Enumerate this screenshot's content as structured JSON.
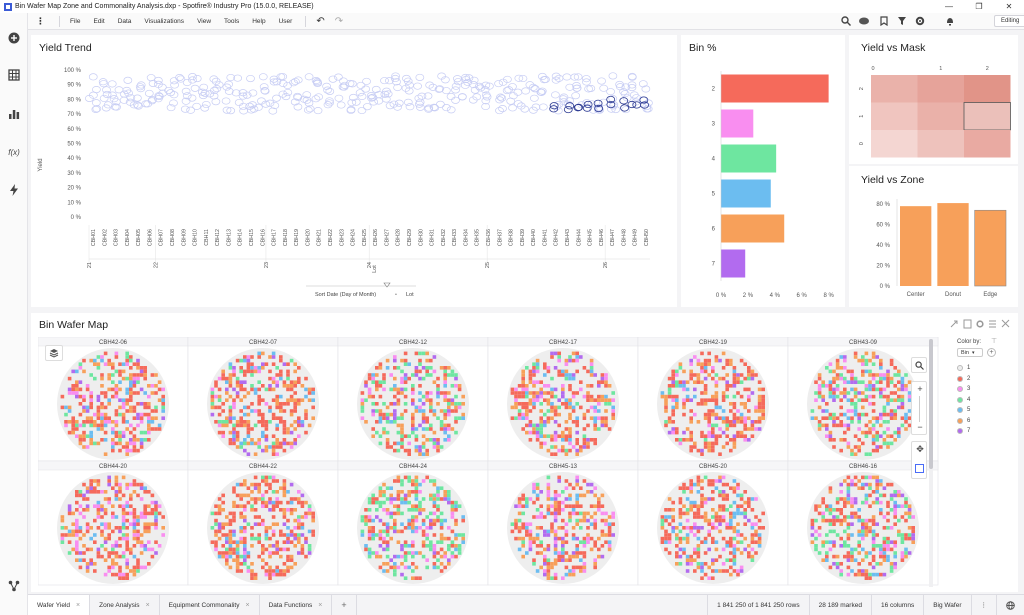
{
  "window": {
    "title": "Bin Wafer Map Zone and Commonality Analysis.dxp - Spotfire® Industry Pro (15.0.0, RELEASE)",
    "minimize": "—",
    "restore": "❐",
    "close": "✕"
  },
  "menu": {
    "items": [
      "File",
      "Edit",
      "Data",
      "Visualizations",
      "View",
      "Tools",
      "Help",
      "User"
    ],
    "undo": "↶",
    "redo": "↷",
    "mode": "Editing"
  },
  "colors": {
    "accent": "#4a6cf7",
    "bin2": "#f56a5b",
    "bin3": "#f98ef0",
    "bin4": "#6ee6a0",
    "bin5": "#6cbdf0",
    "bin6": "#f7a05a",
    "bin7": "#b26bef",
    "bin1": "#eeeeee",
    "zone_bar": "#f7a05a",
    "scatter_light": "#c7cdf4",
    "scatter_dark": "#2c3a92"
  },
  "yield_trend": {
    "title": "Yield Trend",
    "ylabel": "Yield",
    "xlabel": "Lot",
    "sort_label": "Sort Date (Day of Month)",
    "dot": "•",
    "lot_label": "Lot"
  },
  "bin_pct": {
    "title": "Bin %"
  },
  "yield_mask": {
    "title": "Yield vs Mask"
  },
  "yield_zone": {
    "title": "Yield vs Zone"
  },
  "wafer_map": {
    "title": "Bin Wafer Map",
    "color_by_label": "Color by:",
    "color_by_value": "Bin",
    "legend": [
      {
        "label": "1",
        "color": "#eeeeee"
      },
      {
        "label": "2",
        "color": "#f56a5b"
      },
      {
        "label": "3",
        "color": "#f98ef0"
      },
      {
        "label": "4",
        "color": "#6ee6a0"
      },
      {
        "label": "5",
        "color": "#6cbdf0"
      },
      {
        "label": "6",
        "color": "#f7a05a"
      },
      {
        "label": "7",
        "color": "#b26bef"
      }
    ],
    "wafers": [
      "CBH42-06",
      "CBH42-07",
      "CBH42-12",
      "CBH42-17",
      "CBH42-19",
      "CBH43-09",
      "CBH44-20",
      "CBH44-22",
      "CBH44-24",
      "CBH45-13",
      "CBH45-20",
      "CBH46-16"
    ]
  },
  "tabs": [
    {
      "label": "Wafer Yield",
      "active": true
    },
    {
      "label": "Zone Analysis",
      "active": false
    },
    {
      "label": "Equipment Commonality",
      "active": false
    },
    {
      "label": "Data Functions",
      "active": false
    }
  ],
  "add_tab": "+",
  "status": {
    "rows": "1 841 250 of 1 841 250 rows",
    "marked": "28 189 marked",
    "columns": "16 columns",
    "table": "Big Wafer",
    "more": "⋮"
  },
  "chart_data": [
    {
      "type": "scatter",
      "title": "Yield Trend",
      "ylabel": "Yield",
      "xlabel": "Lot",
      "yticks": [
        "0 %",
        "10 %",
        "20 %",
        "30 %",
        "40 %",
        "50 %",
        "60 %",
        "70 %",
        "80 %",
        "90 %",
        "100 %"
      ],
      "ylim": [
        0,
        100
      ],
      "categories": [
        "CBH01",
        "CBH02",
        "CBH03",
        "CBH04",
        "CBH05",
        "CBH06",
        "CBH07",
        "CBH08",
        "CBH09",
        "CBH10",
        "CBH11",
        "CBH12",
        "CBH13",
        "CBH14",
        "CBH15",
        "CBH16",
        "CBH17",
        "CBH18",
        "CBH19",
        "CBH20",
        "CBH21",
        "CBH22",
        "CBH23",
        "CBH24",
        "CBH25",
        "CBH26",
        "CBH27",
        "CBH28",
        "CBH29",
        "CBH30",
        "CBH31",
        "CBH32",
        "CBH33",
        "CBH34",
        "CBH35",
        "CBH36",
        "CBH37",
        "CBH38",
        "CBH39",
        "CBH40",
        "CBH41",
        "CBH42",
        "CBH43",
        "CBH44",
        "CBH45",
        "CBH46",
        "CBH47",
        "CBH48",
        "CBH49",
        "CBH50"
      ],
      "day_groups": [
        {
          "label": "21",
          "start": 0
        },
        {
          "label": "22",
          "start": 9
        },
        {
          "label": "23",
          "start": 24
        },
        {
          "label": "24",
          "start": 38
        },
        {
          "label": "25",
          "start": 54
        },
        {
          "label": "26",
          "start": 70
        }
      ],
      "yield_range": [
        72,
        96
      ],
      "marked_lots": [
        "CBH42",
        "CBH43",
        "CBH44",
        "CBH45",
        "CBH46",
        "CBH47",
        "CBH48",
        "CBH49",
        "CBH50"
      ],
      "marked_yield": [
        73,
        80
      ]
    },
    {
      "type": "bar",
      "orientation": "horizontal",
      "title": "Bin %",
      "categories": [
        "2",
        "3",
        "4",
        "5",
        "6",
        "7"
      ],
      "values": [
        8.0,
        2.4,
        4.1,
        3.7,
        4.7,
        1.8
      ],
      "colors": [
        "#f56a5b",
        "#f98ef0",
        "#6ee6a0",
        "#6cbdf0",
        "#f7a05a",
        "#b26bef"
      ],
      "xticks": [
        "0 %",
        "2 %",
        "4 %",
        "6 %",
        "8 %"
      ],
      "xlim": [
        0,
        8.4
      ]
    },
    {
      "type": "heatmap",
      "title": "Yield vs Mask",
      "x": [
        "0",
        "1",
        "2"
      ],
      "y": [
        "2",
        "1",
        "0"
      ],
      "values": [
        [
          78,
          81,
          83
        ],
        [
          70,
          75,
          73
        ],
        [
          65,
          72,
          77
        ]
      ],
      "colors": [
        [
          "#eab2aa",
          "#e6a39a",
          "#e19488"
        ],
        [
          "#f0c5bf",
          "#eab1a9",
          "#ebc0ba"
        ],
        [
          "#f4d6d2",
          "#eec2bc",
          "#e9aaa2"
        ]
      ],
      "selected": [
        1,
        2
      ]
    },
    {
      "type": "bar",
      "title": "Yield vs Zone",
      "categories": [
        "Center",
        "Donut",
        "Edge"
      ],
      "values": [
        78,
        81,
        74
      ],
      "yticks": [
        "0 %",
        "20 %",
        "40 %",
        "60 %",
        "80 %"
      ],
      "ylim": [
        0,
        85
      ]
    }
  ]
}
